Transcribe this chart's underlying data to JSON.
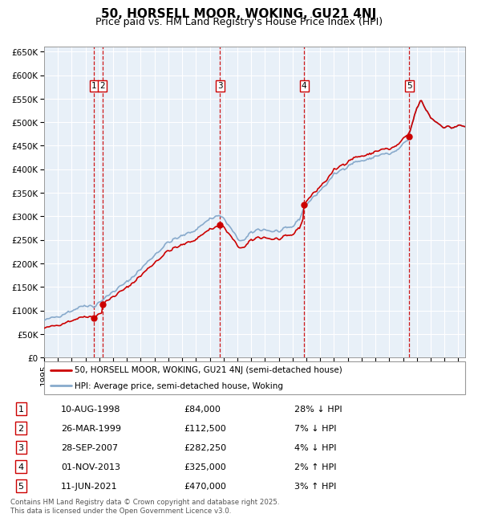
{
  "title": "50, HORSELL MOOR, WOKING, GU21 4NJ",
  "subtitle": "Price paid vs. HM Land Registry's House Price Index (HPI)",
  "ylim": [
    0,
    660000
  ],
  "yticks": [
    0,
    50000,
    100000,
    150000,
    200000,
    250000,
    300000,
    350000,
    400000,
    450000,
    500000,
    550000,
    600000,
    650000
  ],
  "ytick_labels": [
    "£0",
    "£50K",
    "£100K",
    "£150K",
    "£200K",
    "£250K",
    "£300K",
    "£350K",
    "£400K",
    "£450K",
    "£500K",
    "£550K",
    "£600K",
    "£650K"
  ],
  "xlim_start": 1995.0,
  "xlim_end": 2025.5,
  "background_color": "#e8f0f8",
  "grid_color": "#ffffff",
  "sale_color": "#cc0000",
  "hpi_color": "#88aacc",
  "transaction_color": "#cc0000",
  "transactions": [
    {
      "num": 1,
      "date_label": "10-AUG-1998",
      "price": 84000,
      "pct": "28%",
      "dir": "↓",
      "x": 1998.61
    },
    {
      "num": 2,
      "date_label": "26-MAR-1999",
      "price": 112500,
      "pct": "7%",
      "dir": "↓",
      "x": 1999.23
    },
    {
      "num": 3,
      "date_label": "28-SEP-2007",
      "price": 282250,
      "pct": "4%",
      "dir": "↓",
      "x": 2007.74
    },
    {
      "num": 4,
      "date_label": "01-NOV-2013",
      "price": 325000,
      "pct": "2%",
      "dir": "↑",
      "x": 2013.83
    },
    {
      "num": 5,
      "date_label": "11-JUN-2021",
      "price": 470000,
      "pct": "3%",
      "dir": "↑",
      "x": 2021.44
    }
  ],
  "legend": {
    "sale_label": "50, HORSELL MOOR, WOKING, GU21 4NJ (semi-detached house)",
    "hpi_label": "HPI: Average price, semi-detached house, Woking"
  },
  "table": [
    [
      "1",
      "10-AUG-1998",
      "£84,000",
      "28% ↓ HPI"
    ],
    [
      "2",
      "26-MAR-1999",
      "£112,500",
      "7% ↓ HPI"
    ],
    [
      "3",
      "28-SEP-2007",
      "£282,250",
      "4% ↓ HPI"
    ],
    [
      "4",
      "01-NOV-2013",
      "£325,000",
      "2% ↑ HPI"
    ],
    [
      "5",
      "11-JUN-2021",
      "£470,000",
      "3% ↑ HPI"
    ]
  ],
  "footer": "Contains HM Land Registry data © Crown copyright and database right 2025.\nThis data is licensed under the Open Government Licence v3.0.",
  "title_fontsize": 11,
  "subtitle_fontsize": 9,
  "tick_fontsize": 7.5,
  "label_fontsize": 7.5
}
